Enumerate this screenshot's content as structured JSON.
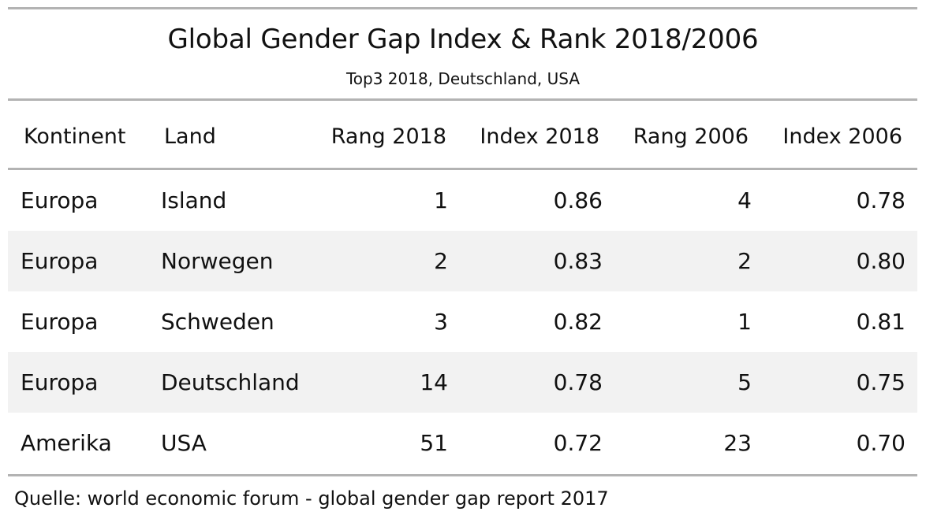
{
  "table": {
    "title": "Global Gender Gap Index & Rank 2018/2006",
    "subtitle": "Top3 2018, Deutschland, USA",
    "columns": [
      "Kontinent",
      "Land",
      "Rang 2018",
      "Index 2018",
      "Rang 2006",
      "Index 2006"
    ],
    "rows": [
      [
        "Europa",
        "Island",
        "1",
        "0.86",
        "4",
        "0.78"
      ],
      [
        "Europa",
        "Norwegen",
        "2",
        "0.83",
        "2",
        "0.80"
      ],
      [
        "Europa",
        "Schweden",
        "3",
        "0.82",
        "1",
        "0.81"
      ],
      [
        "Europa",
        "Deutschland",
        "14",
        "0.78",
        "5",
        "0.75"
      ],
      [
        "Amerika",
        "USA",
        "51",
        "0.72",
        "23",
        "0.70"
      ]
    ],
    "source": "Quelle: world economic forum - global gender gap report 2017"
  },
  "colors": {
    "rule": "#b3b3b3",
    "stripe": "#f2f2f2",
    "text": "#111111"
  }
}
